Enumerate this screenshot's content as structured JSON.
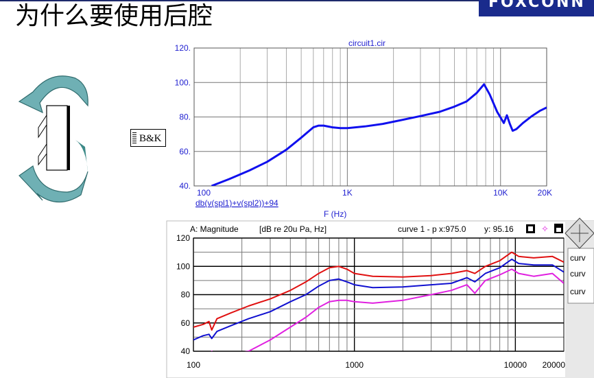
{
  "page": {
    "title": "为什么要使用后腔",
    "logo_text": "FOXCONN",
    "bk_label": "B&K"
  },
  "chart_data": [
    {
      "type": "line",
      "title": "circuit1.cir",
      "xlabel": "F (Hz)",
      "ylabel": "",
      "x_scale": "log",
      "xlim": [
        100,
        20000
      ],
      "ylim": [
        40,
        120
      ],
      "x_ticks": [
        100,
        1000,
        10000,
        20000
      ],
      "x_tick_labels": [
        "100",
        "1K",
        "10K",
        "20K"
      ],
      "y_ticks": [
        40,
        60,
        80,
        100,
        120
      ],
      "y_tick_labels": [
        "40.",
        "60.",
        "80.",
        "100.",
        "120."
      ],
      "grid": true,
      "series": [
        {
          "name": "db(v(spl1)+v(spl2))+94",
          "color": "#1010ee",
          "x": [
            130,
            170,
            230,
            300,
            400,
            500,
            600,
            650,
            700,
            800,
            900,
            1000,
            1300,
            1700,
            2200,
            3000,
            4000,
            5000,
            6000,
            7000,
            7800,
            8500,
            9500,
            10500,
            11000,
            11500,
            12000,
            12700,
            14000,
            16000,
            18000,
            20000
          ],
          "y": [
            40,
            44,
            49,
            54,
            61,
            68,
            74,
            75,
            75,
            74,
            73.5,
            73.5,
            74.5,
            76,
            78,
            80.5,
            83,
            86,
            89,
            94,
            99,
            93,
            83,
            76.5,
            81,
            76,
            72,
            73,
            76.5,
            80.5,
            83.5,
            85.5
          ]
        }
      ]
    },
    {
      "type": "line",
      "title": "A: Magnitude",
      "header_units": "[dB re 20u Pa, Hz]",
      "cursor_readout": "curve 1 - p x:975.0",
      "cursor_y": "y: 95.16",
      "legend": [
        "curv",
        "curv",
        "curv"
      ],
      "x_scale": "log",
      "xlim": [
        100,
        20000
      ],
      "ylim": [
        40,
        120
      ],
      "x_ticks": [
        100,
        1000,
        10000,
        20000
      ],
      "x_tick_labels": [
        "100",
        "1000",
        "10000",
        "20000"
      ],
      "y_ticks": [
        40,
        60,
        80,
        100,
        120
      ],
      "y_tick_labels": [
        "40",
        "60",
        "80",
        "100",
        "120"
      ],
      "grid": true,
      "series": [
        {
          "color": "#e01010",
          "x": [
            100,
            115,
            125,
            130,
            140,
            170,
            220,
            300,
            400,
            500,
            600,
            700,
            800,
            900,
            1000,
            1300,
            2000,
            3000,
            4000,
            5000,
            5600,
            6500,
            8000,
            9500,
            10500,
            13000,
            17000,
            20000
          ],
          "y": [
            57,
            59,
            61,
            55,
            63,
            67,
            72,
            77,
            83,
            89,
            95,
            99,
            100,
            98,
            95,
            93,
            92.5,
            93.5,
            95,
            97,
            95,
            100,
            104,
            110,
            107,
            106,
            107,
            103
          ]
        },
        {
          "color": "#1010d0",
          "x": [
            100,
            115,
            125,
            130,
            140,
            170,
            220,
            300,
            400,
            500,
            600,
            700,
            800,
            900,
            1000,
            1300,
            2000,
            3000,
            4000,
            5000,
            5600,
            6500,
            8000,
            9500,
            10500,
            13000,
            17000,
            20000
          ],
          "y": [
            48,
            51,
            52,
            49,
            54,
            58,
            63,
            68,
            75,
            80,
            86,
            90,
            91,
            89,
            87,
            85,
            85.5,
            87,
            88,
            92,
            89,
            95,
            99,
            105,
            102,
            101,
            101,
            96
          ]
        },
        {
          "color": "#e020e0",
          "x": [
            100,
            125,
            130,
            140,
            170,
            220,
            300,
            400,
            500,
            600,
            700,
            800,
            900,
            1000,
            1300,
            2000,
            3000,
            4000,
            5000,
            5600,
            6500,
            8000,
            9500,
            10500,
            13000,
            17000,
            20000
          ],
          "y": [
            30,
            30,
            40,
            30,
            38,
            40,
            48,
            57,
            64,
            71,
            75,
            76,
            76,
            75,
            74,
            76,
            80,
            83,
            87,
            81,
            90,
            94,
            98,
            95,
            93,
            95,
            88
          ]
        }
      ]
    }
  ]
}
